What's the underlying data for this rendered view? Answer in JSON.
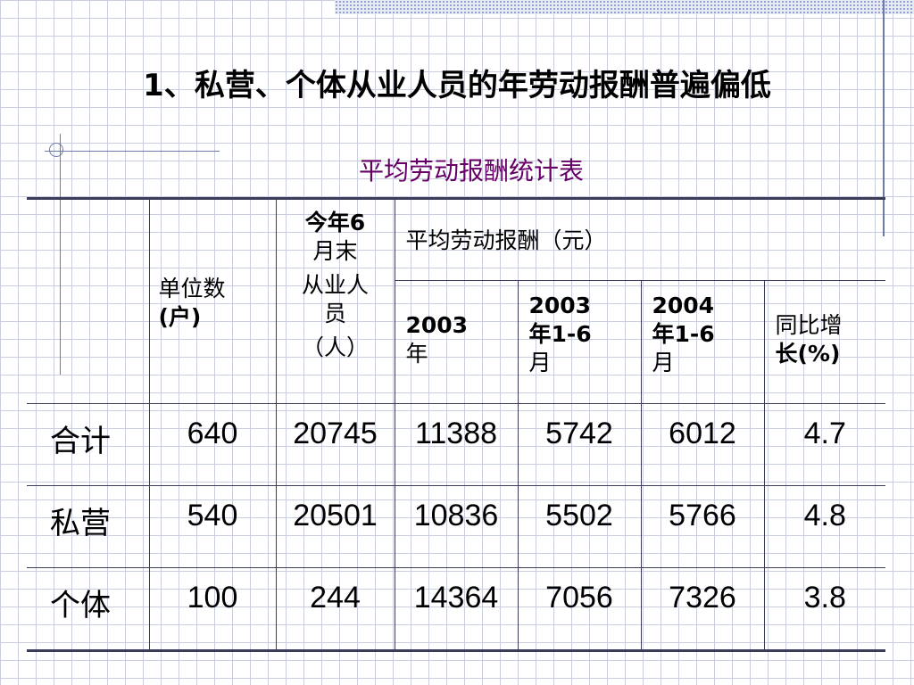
{
  "slide": {
    "title": "1、私营、个体从业人员的年劳动报酬普遍偏低"
  },
  "table": {
    "caption": "平均劳动报酬统计表",
    "headers": {
      "units_line1": "单位数",
      "units_line2": "(户)",
      "employees_line1": "今年6",
      "employees_line2": "月末",
      "employees_line3": "从业人",
      "employees_line4": "员",
      "employees_line5": "（人）",
      "avg_pay_group": "平均劳动报酬（元）",
      "y2003_line1": "2003",
      "y2003_line2": "年",
      "h2003_line1": "2003",
      "h2003_line2": "年1-6",
      "h2003_line3": "月",
      "h2004_line1": "2004",
      "h2004_line2": "年1-6",
      "h2004_line3": "月",
      "growth_line1": "同比增",
      "growth_line2": "长(%)"
    },
    "rows": [
      {
        "label": "合计",
        "units": "640",
        "employees": "20745",
        "pay_2003": "11388",
        "pay_2003_h1": "5742",
        "pay_2004_h1": "6012",
        "growth": "4.7"
      },
      {
        "label": "私营",
        "units": "540",
        "employees": "20501",
        "pay_2003": "10836",
        "pay_2003_h1": "5502",
        "pay_2004_h1": "5766",
        "growth": "4.8"
      },
      {
        "label": "个体",
        "units": "100",
        "employees": "244",
        "pay_2003": "14364",
        "pay_2003_h1": "7056",
        "pay_2004_h1": "7326",
        "growth": "3.8"
      }
    ]
  }
}
